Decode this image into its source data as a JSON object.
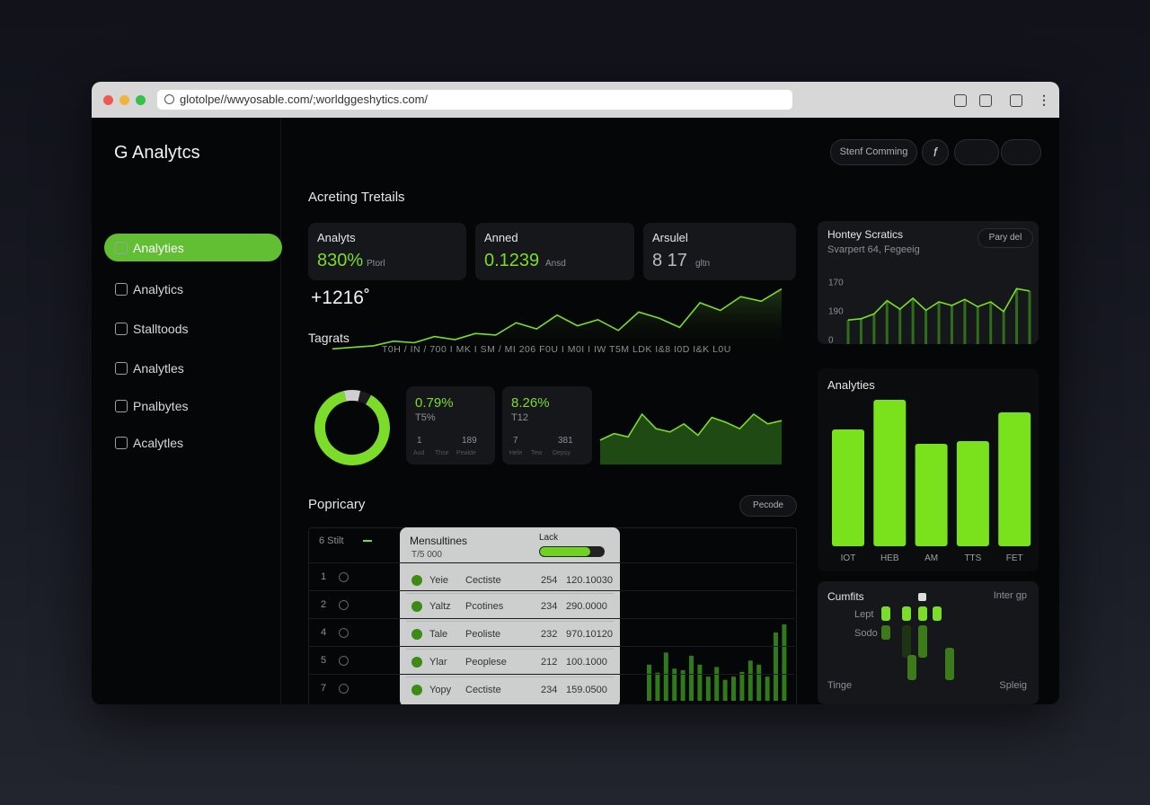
{
  "browser": {
    "url": "glotolpe//wwyosable.com/;worldggeshytics.com/"
  },
  "sidebar": {
    "brand": "G Analytcs",
    "items": [
      "Analyties",
      "Analytics",
      "Stalltoods",
      "Analytles",
      "Pnalbytes",
      "Acalytles"
    ]
  },
  "header": {
    "button": "Stenf Comming",
    "icon": "f"
  },
  "main": {
    "title": "Acreting Tretails",
    "kpis": [
      {
        "label": "Analyts",
        "value": "830%",
        "unit": "Ptorl"
      },
      {
        "label": "Anned",
        "value": "0.1239",
        "unit": "Ansd"
      },
      {
        "label": "Arsulel",
        "value": "8 17",
        "unit": "gltn"
      }
    ],
    "delta": "+1216˚",
    "trend": {
      "label": "Tagrats",
      "axis_text": "T0H / IN / 700 I MK I SM / MI 206 F0U I M0I I IW T5M LDK I&8 I0D I&K L0U",
      "values": [
        2,
        4,
        6,
        12,
        10,
        18,
        14,
        22,
        20,
        36,
        28,
        46,
        32,
        40,
        26,
        50,
        42,
        30,
        62,
        52,
        70,
        64,
        80
      ]
    },
    "donut": {
      "values": [
        88,
        7,
        5
      ]
    },
    "stat_cards": [
      {
        "value": "0.79%",
        "sub": "T5%",
        "stats": [
          "1",
          "189"
        ],
        "labels": [
          "Aud",
          "Thse",
          "Pealde"
        ]
      },
      {
        "value": "8.26%",
        "sub": "T12",
        "stats": [
          "7",
          "381"
        ],
        "labels": [
          "Hele",
          "Tew",
          "Depsy"
        ]
      }
    ],
    "mini_area": {
      "values": [
        30,
        38,
        34,
        62,
        44,
        40,
        50,
        36,
        58,
        52,
        44,
        62,
        50,
        54
      ]
    }
  },
  "table": {
    "title": "Popricary",
    "button": "Pecode",
    "header": "6 Stilt",
    "row_numbers": [
      "1",
      "2",
      "4",
      "5",
      "7"
    ],
    "popup": {
      "title": "Mensultines",
      "subtitle": "T/5 000",
      "slider_label": "Lack",
      "rows": [
        [
          "Yeie",
          "Cectiste",
          "254",
          "120.10030"
        ],
        [
          "Yaltz",
          "Pcotines",
          "234",
          "290.0000"
        ],
        [
          "Tale",
          "Peoliste",
          "232",
          "970.10120"
        ],
        [
          "Ylar",
          "Peoplese",
          "212",
          "100.1000"
        ],
        [
          "Yopy",
          "Cectiste",
          "234",
          "159.0500"
        ]
      ]
    },
    "bars": [
      45,
      35,
      60,
      40,
      38,
      56,
      45,
      30,
      42,
      26,
      30,
      36,
      50,
      45,
      30,
      85,
      95
    ]
  },
  "right": {
    "hourly": {
      "title": "Hontey Scratics",
      "subtitle": "Svarpert 64, Fegeeig",
      "button": "Pary del",
      "ylabels": [
        "170",
        "190",
        "0"
      ],
      "values": [
        40,
        42,
        50,
        72,
        58,
        76,
        56,
        70,
        64,
        74,
        62,
        70,
        54,
        92,
        88
      ]
    },
    "analytics": {
      "title": "Analyties",
      "categories": [
        "IOT",
        "HEB",
        "AM",
        "TTS",
        "FET"
      ],
      "values": [
        130,
        163,
        114,
        117,
        149
      ]
    },
    "cumfits": {
      "title": "Cumfits",
      "right_label": "Inter gp",
      "rows": [
        "Lept",
        "Sodo"
      ],
      "footer_left": "Tinge",
      "footer_right": "Spleig"
    }
  }
}
